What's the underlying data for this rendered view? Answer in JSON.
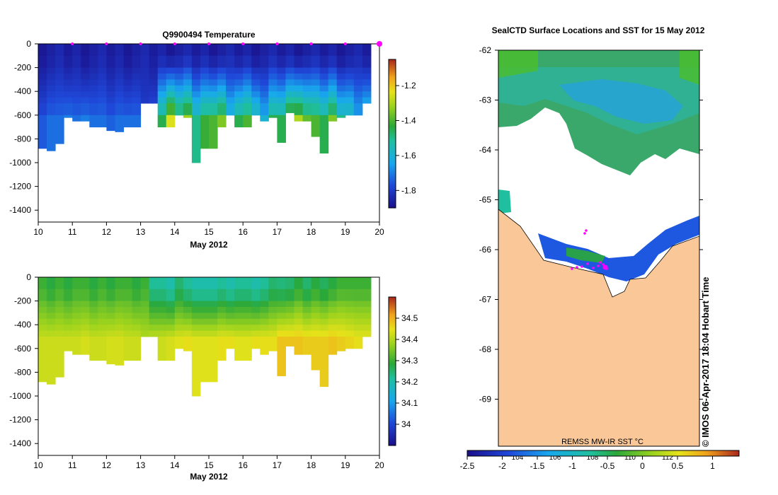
{
  "temperature_panel": {
    "title": "Q9900494  Temperature",
    "xlabel": "May 2012",
    "x_ticks": [
      "10",
      "11",
      "12",
      "13",
      "14",
      "15",
      "16",
      "17",
      "18",
      "19",
      "20"
    ],
    "y_ticks": [
      "0",
      "-200",
      "-400",
      "-600",
      "-800",
      "-1000",
      "-1200",
      "-1400"
    ],
    "colorbar_ticks": [
      "-1.2",
      "-1.4",
      "-1.6",
      "-1.8"
    ]
  },
  "salinity_panel": {
    "xlabel": "May 2012",
    "x_ticks": [
      "10",
      "11",
      "12",
      "13",
      "14",
      "15",
      "16",
      "17",
      "18",
      "19",
      "20"
    ],
    "y_ticks": [
      "0",
      "-200",
      "-400",
      "-600",
      "-800",
      "-1000",
      "-1200",
      "-1400"
    ],
    "colorbar_ticks": [
      "34.5",
      "34.4",
      "34.3",
      "34.2",
      "34.1",
      "34"
    ]
  },
  "map_panel": {
    "title": "SealCTD Surface Locations and SST for 15 May 2012",
    "lat_ticks": [
      "-62",
      "-63",
      "-64",
      "-65",
      "-66",
      "-67",
      "-68",
      "-69"
    ],
    "sst_label": "REMSS MW-IR SST °C",
    "sst_ticks": [
      "-2.5",
      "-2",
      "-1.5",
      "-1",
      "-0.5",
      "0",
      "0.5",
      "1"
    ],
    "inner_ticks": [
      "104",
      "106",
      "108",
      "110",
      "112"
    ],
    "credit": "© IMOS 06-Apr-2017 18:04 Hobart Time"
  },
  "chart_data": [
    {
      "type": "heatmap",
      "title": "Q9900494  Temperature",
      "xlabel": "May 2012",
      "ylabel": "",
      "xlim": [
        10,
        20
      ],
      "ylim": [
        -1500,
        0
      ],
      "colorbar_range": [
        -1.9,
        -1.05
      ],
      "profiles": {
        "day": [
          10.0,
          10.25,
          10.5,
          10.75,
          11.0,
          11.25,
          11.5,
          11.75,
          12.0,
          12.25,
          12.5,
          12.75,
          13.0,
          13.25,
          13.5,
          13.75,
          14.0,
          14.25,
          14.5,
          14.75,
          15.0,
          15.25,
          15.5,
          15.75,
          16.0,
          16.25,
          16.5,
          16.75,
          17.0,
          17.25,
          17.5,
          17.75,
          18.0,
          18.25,
          18.5,
          18.75,
          19.0,
          19.25,
          19.5
        ],
        "max_depth": [
          -880,
          -900,
          -840,
          -620,
          -650,
          -650,
          -700,
          -700,
          -730,
          -740,
          -700,
          -700,
          -500,
          -500,
          -700,
          -700,
          -600,
          -620,
          -1000,
          -880,
          -880,
          -700,
          -600,
          -700,
          -700,
          -600,
          -650,
          -620,
          -830,
          -580,
          -650,
          -650,
          -780,
          -920,
          -650,
          -620,
          -600,
          -600,
          -500
        ],
        "bottom_temp": [
          -1.75,
          -1.72,
          -1.72,
          -1.7,
          -1.72,
          -1.7,
          -1.72,
          -1.72,
          -1.74,
          -1.72,
          -1.72,
          -1.72,
          -1.8,
          -1.78,
          -1.45,
          -1.25,
          -1.38,
          -1.32,
          -1.5,
          -1.42,
          -1.4,
          -1.35,
          -1.55,
          -1.45,
          -1.4,
          -1.5,
          -1.6,
          -1.45,
          -1.45,
          -1.35,
          -1.3,
          -1.38,
          -1.4,
          -1.45,
          -1.35,
          -1.5,
          -1.5,
          -1.62,
          -1.62
        ]
      }
    },
    {
      "type": "heatmap",
      "title": "",
      "xlabel": "May 2012",
      "ylabel": "",
      "xlim": [
        10,
        20
      ],
      "ylim": [
        -1500,
        0
      ],
      "colorbar_range": [
        33.9,
        34.6
      ],
      "profiles": {
        "day": [
          10.0,
          10.25,
          10.5,
          10.75,
          11.0,
          11.25,
          11.5,
          11.75,
          12.0,
          12.25,
          12.5,
          12.75,
          13.0,
          13.25,
          13.5,
          13.75,
          14.0,
          14.25,
          14.5,
          14.75,
          15.0,
          15.25,
          15.5,
          15.75,
          16.0,
          16.25,
          16.5,
          16.75,
          17.0,
          17.25,
          17.5,
          17.75,
          18.0,
          18.25,
          18.5,
          18.75,
          19.0,
          19.25,
          19.5
        ],
        "max_depth": [
          -880,
          -900,
          -840,
          -620,
          -650,
          -650,
          -700,
          -700,
          -730,
          -740,
          -700,
          -700,
          -500,
          -500,
          -700,
          -700,
          -600,
          -620,
          -1000,
          -880,
          -880,
          -700,
          -600,
          -700,
          -700,
          -600,
          -650,
          -620,
          -830,
          -580,
          -650,
          -650,
          -780,
          -920,
          -650,
          -620,
          -600,
          -600,
          -500
        ],
        "surface_sal": [
          34.3,
          34.28,
          34.3,
          34.28,
          34.3,
          34.3,
          34.28,
          34.3,
          34.28,
          34.3,
          34.3,
          34.28,
          34.3,
          34.22,
          34.22,
          34.2,
          34.25,
          34.22,
          34.2,
          34.2,
          34.2,
          34.22,
          34.2,
          34.22,
          34.22,
          34.2,
          34.22,
          34.25,
          34.24,
          34.25,
          34.28,
          34.25,
          34.28,
          34.26,
          34.28,
          34.3,
          34.3,
          34.3,
          34.3
        ],
        "deep_sal": [
          34.42,
          34.42,
          34.42,
          34.42,
          34.42,
          34.43,
          34.42,
          34.42,
          34.43,
          34.43,
          34.42,
          34.42,
          34.4,
          34.42,
          34.42,
          34.43,
          34.44,
          34.45,
          34.44,
          34.44,
          34.44,
          34.45,
          34.45,
          34.44,
          34.44,
          34.45,
          34.45,
          34.45,
          34.48,
          34.48,
          34.48,
          34.47,
          34.47,
          34.47,
          34.48,
          34.47,
          34.46,
          34.45,
          34.45
        ]
      }
    }
  ]
}
